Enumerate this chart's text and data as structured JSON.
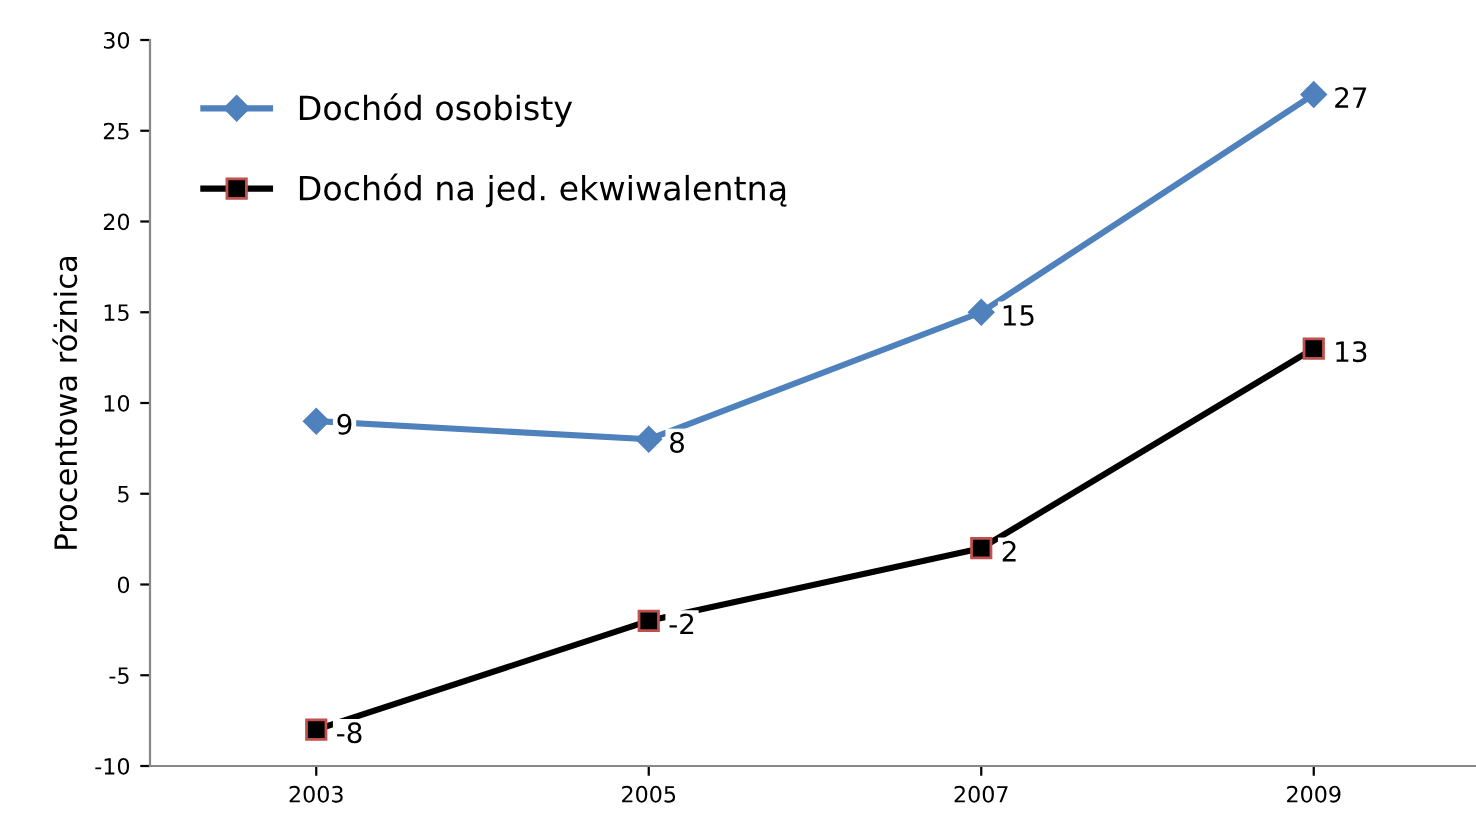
{
  "chart_data": {
    "type": "line",
    "ylabel": "Procentowa różnica",
    "categories": [
      "2003",
      "2005",
      "2007",
      "2009"
    ],
    "series": [
      {
        "name": "Dochód osobisty",
        "color": "#4f81bd",
        "marker": "diamond",
        "values": [
          9,
          8,
          15,
          27
        ]
      },
      {
        "name": "Dochód na jed. ekwiwalentną",
        "color": "#000000",
        "marker": "square",
        "values": [
          -8,
          -2,
          2,
          13
        ]
      }
    ],
    "ylim": [
      -10,
      30
    ],
    "yticks": [
      -10,
      -5,
      0,
      5,
      10,
      15,
      20,
      25,
      30
    ],
    "grid": false,
    "legend": "top left",
    "data_labels": true
  }
}
